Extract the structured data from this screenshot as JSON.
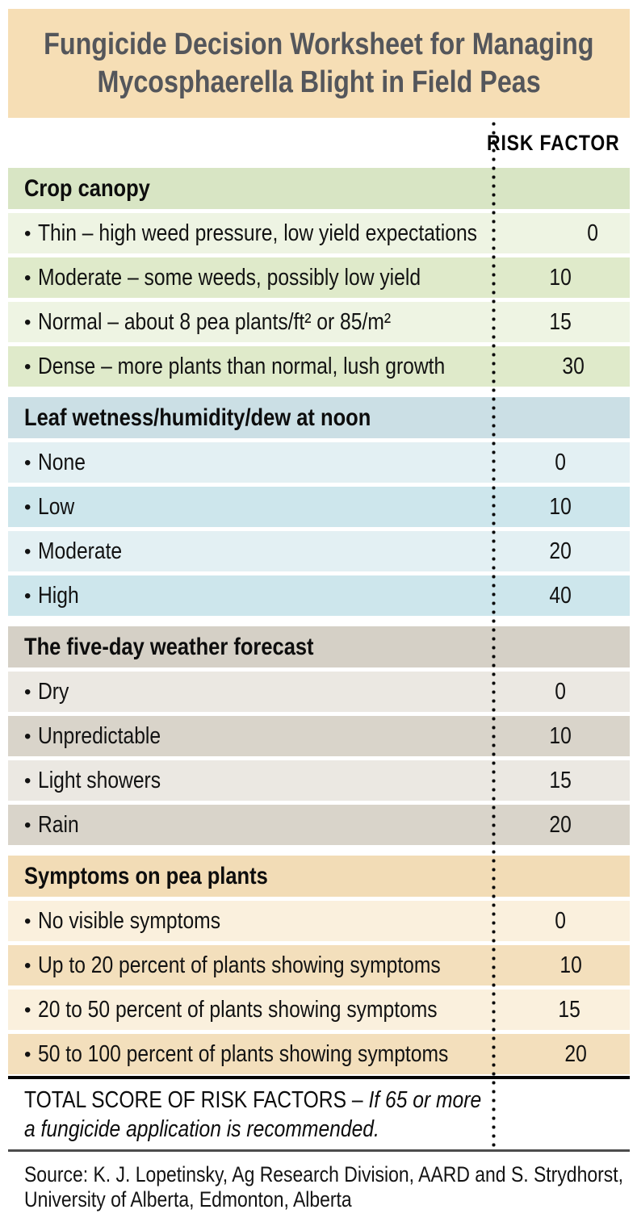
{
  "title": {
    "line1": "Fungicide Decision Worksheet for Managing",
    "line2": "Mycosphaerella Blight in Field Peas"
  },
  "risk_factor_header": "RISK FACTOR",
  "list_marker": "•",
  "sections": [
    {
      "name": "Crop canopy",
      "theme": "green",
      "rows": [
        {
          "label": "Thin – high weed pressure, low yield expectations",
          "value": "0"
        },
        {
          "label": "Moderate – some weeds, possibly low yield",
          "value": "10"
        },
        {
          "label": "Normal – about 8 pea plants/ft² or 85/m²",
          "value": "15"
        },
        {
          "label": "Dense – more plants than normal, lush growth",
          "value": "30"
        }
      ]
    },
    {
      "name": "Leaf wetness/humidity/dew at noon",
      "theme": "blue",
      "rows": [
        {
          "label": "None",
          "value": "0"
        },
        {
          "label": "Low",
          "value": "10"
        },
        {
          "label": "Moderate",
          "value": "20"
        },
        {
          "label": "High",
          "value": "40"
        }
      ]
    },
    {
      "name": "The five-day weather forecast",
      "theme": "gray",
      "rows": [
        {
          "label": "Dry",
          "value": "0"
        },
        {
          "label": "Unpredictable",
          "value": "10"
        },
        {
          "label": "Light showers",
          "value": "15"
        },
        {
          "label": "Rain",
          "value": "20"
        }
      ]
    },
    {
      "name": "Symptoms on pea plants",
      "theme": "tan",
      "rows": [
        {
          "label": "No visible symptoms",
          "value": "0"
        },
        {
          "label": "Up to 20 percent of plants showing symptoms",
          "value": "10"
        },
        {
          "label": "20 to 50 percent of plants showing symptoms",
          "value": "15"
        },
        {
          "label": "50 to 100 percent of plants showing symptoms",
          "value": "20"
        }
      ]
    }
  ],
  "total": {
    "label": "TOTAL SCORE OF RISK FACTORS – ",
    "note": "If 65 or more a fungicide application is recommended."
  },
  "source": "Source: K. J. Lopetinsky, Ag Research Division, AARD and S. Strydhorst, University of Alberta, Edmonton, Alberta",
  "colors": {
    "title_band_bg": "#f6deb5",
    "title_text": "#54565b",
    "green_header": "#d8e5c4",
    "green_row_light": "#eef4e3",
    "green_row_dark": "#dfeaca",
    "blue_header": "#cbdfe5",
    "blue_row_light": "#e3f0f3",
    "blue_row_dark": "#cde6ec",
    "gray_header": "#d5d0c6",
    "gray_row_light": "#ebe8e2",
    "gray_row_dark": "#d9d4ca",
    "tan_header": "#f2dcb6",
    "tan_row_light": "#faf0dd",
    "tan_row_dark": "#f3dfbc",
    "rule_black": "#060606",
    "rule_gray": "#4c4c4c",
    "dotted_line": "#0a0a0a"
  }
}
